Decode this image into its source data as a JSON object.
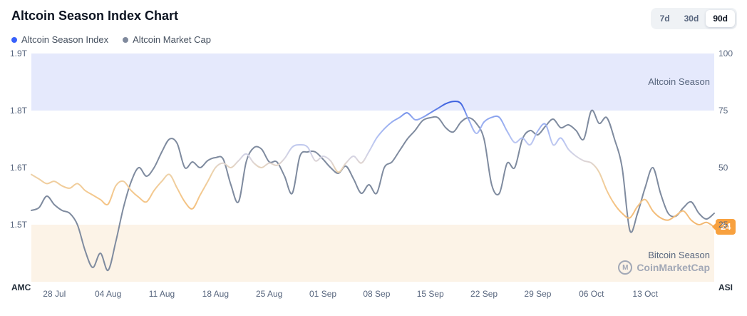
{
  "header": {
    "title": "Altcoin Season Index Chart",
    "range_buttons": [
      {
        "label": "7d",
        "active": false
      },
      {
        "label": "30d",
        "active": false
      },
      {
        "label": "90d",
        "active": true
      }
    ]
  },
  "legend": [
    {
      "label": "Altcoin Season Index",
      "color": "#3861fb"
    },
    {
      "label": "Altcoin Market Cap",
      "color": "#808a9d"
    }
  ],
  "chart_data": {
    "type": "line",
    "title": "Altcoin Season Index Chart",
    "x_ticks": [
      {
        "label": "28 Jul",
        "i": 3
      },
      {
        "label": "04 Aug",
        "i": 10
      },
      {
        "label": "11 Aug",
        "i": 17
      },
      {
        "label": "18 Aug",
        "i": 24
      },
      {
        "label": "25 Aug",
        "i": 31
      },
      {
        "label": "01 Sep",
        "i": 38
      },
      {
        "label": "08 Sep",
        "i": 45
      },
      {
        "label": "15 Sep",
        "i": 52
      },
      {
        "label": "22 Sep",
        "i": 59
      },
      {
        "label": "29 Sep",
        "i": 66
      },
      {
        "label": "06 Oct",
        "i": 73
      },
      {
        "label": "13 Oct",
        "i": 80
      }
    ],
    "left_axis": {
      "label": "AMC",
      "ticks": [
        {
          "label": "1.9T",
          "unit": 100
        },
        {
          "label": "1.8T",
          "unit": 75
        },
        {
          "label": "1.6T",
          "unit": 50
        },
        {
          "label": "1.5T",
          "unit": 25
        }
      ]
    },
    "right_axis": {
      "label": "ASI",
      "ticks": [
        100,
        75,
        50,
        25
      ]
    },
    "bands": {
      "altcoin": {
        "label": "Altcoin Season",
        "from": 75,
        "to": 100,
        "color": "#e5e9fc"
      },
      "bitcoin": {
        "label": "Bitcoin Season",
        "from": 0,
        "to": 25,
        "color": "#fcf3e7"
      }
    },
    "amc_scale_anchors": [
      [
        1.5,
        25
      ],
      [
        1.6,
        50
      ],
      [
        1.8,
        75
      ],
      [
        1.9,
        100
      ]
    ],
    "style": {
      "amc_color": "#7f8b9f",
      "asi_gradient": [
        {
          "offset": "0%",
          "color": "#3050cf"
        },
        {
          "offset": "22%",
          "color": "#3f63e0"
        },
        {
          "offset": "28%",
          "color": "#8ea6ef"
        },
        {
          "offset": "38%",
          "color": "#b7c4f3"
        },
        {
          "offset": "46%",
          "color": "#d8d5e0"
        },
        {
          "offset": "52%",
          "color": "#ecd2ab"
        },
        {
          "offset": "62%",
          "color": "#f4c88d"
        },
        {
          "offset": "75%",
          "color": "#f3b871"
        },
        {
          "offset": "100%",
          "color": "#efa758"
        }
      ]
    },
    "series": [
      {
        "name": "Altcoin Season Index",
        "axis": "right",
        "values": [
          47,
          45,
          43,
          44,
          42,
          41,
          43,
          40,
          38,
          36,
          34,
          42,
          44,
          40,
          37,
          35,
          40,
          44,
          47,
          41,
          35,
          32,
          38,
          44,
          50,
          52,
          50,
          53,
          56,
          52,
          50,
          52,
          51,
          54,
          59,
          60,
          59,
          53,
          55,
          53,
          48,
          52,
          55,
          52,
          57,
          63,
          67,
          70,
          72,
          74,
          71,
          72,
          74,
          76,
          78,
          79,
          78,
          71,
          65,
          70,
          72,
          72,
          66,
          61,
          63,
          60,
          66,
          69,
          60,
          63,
          58,
          55,
          53,
          52,
          48,
          40,
          34,
          30,
          28,
          33,
          36,
          31,
          28,
          27,
          29,
          31,
          27,
          25,
          26,
          24
        ]
      },
      {
        "name": "Altcoin Market Cap",
        "axis": "left",
        "values": [
          1.525,
          1.53,
          1.55,
          1.535,
          1.525,
          1.52,
          1.5,
          1.455,
          1.425,
          1.45,
          1.42,
          1.47,
          1.53,
          1.575,
          1.6,
          1.585,
          1.6,
          1.655,
          1.7,
          1.685,
          1.6,
          1.62,
          1.6,
          1.625,
          1.635,
          1.63,
          1.57,
          1.54,
          1.62,
          1.67,
          1.665,
          1.62,
          1.62,
          1.585,
          1.555,
          1.64,
          1.655,
          1.655,
          1.63,
          1.6,
          1.59,
          1.605,
          1.58,
          1.555,
          1.57,
          1.555,
          1.6,
          1.62,
          1.66,
          1.7,
          1.73,
          1.765,
          1.775,
          1.775,
          1.74,
          1.725,
          1.76,
          1.775,
          1.755,
          1.7,
          1.57,
          1.555,
          1.615,
          1.6,
          1.7,
          1.73,
          1.715,
          1.745,
          1.77,
          1.74,
          1.75,
          1.73,
          1.7,
          1.8,
          1.755,
          1.775,
          1.7,
          1.6,
          1.49,
          1.52,
          1.565,
          1.6,
          1.555,
          1.52,
          1.515,
          1.53,
          1.54,
          1.52,
          1.51,
          1.52
        ]
      }
    ],
    "current_value_badge": {
      "value": 24,
      "color": "#f8a13f"
    },
    "watermark": "CoinMarketCap",
    "watermark_logo_letter": "M"
  }
}
